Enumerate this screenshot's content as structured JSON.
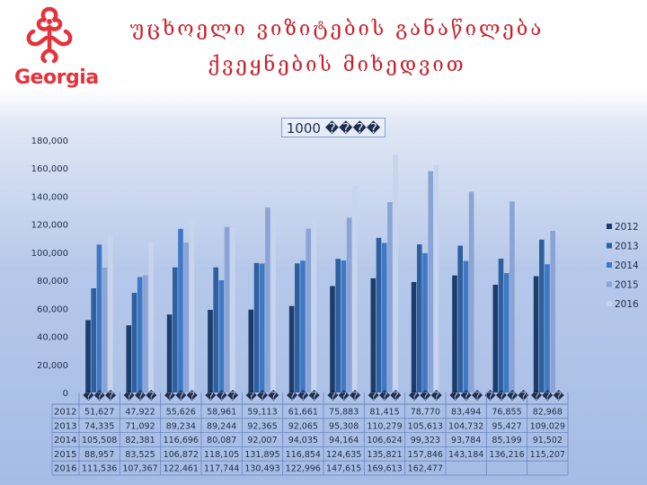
{
  "header": {
    "logo_text": "Georgia",
    "title_line1": "უცხოელი ვიზიტების განაწილება",
    "title_line2": "ქვეყნების მიხედვით"
  },
  "unit_label": "1000 ����",
  "colors": {
    "2012": "#1c3c6b",
    "2013": "#2e5f9e",
    "2014": "#3f78c4",
    "2015": "#8aa4d6",
    "2016": "#c7d4ee"
  },
  "chart_data": {
    "type": "bar",
    "ylim": [
      0,
      180000
    ],
    "y_ticks": [
      "0",
      "20,000",
      "40,000",
      "60,000",
      "80,000",
      "100,000",
      "120,000",
      "140,000",
      "160,000",
      "180,000"
    ],
    "categories": [
      "���",
      "���",
      "���",
      "���",
      "���",
      "���",
      "���",
      "���",
      "���",
      "���",
      "����",
      "���"
    ],
    "legend_position": "right",
    "series": [
      {
        "name": "2012",
        "values": [
          51627,
          47922,
          55626,
          58961,
          59113,
          61661,
          75883,
          81415,
          78770,
          83494,
          76855,
          82968
        ],
        "labels": [
          "51,627",
          "47,922",
          "55,626",
          "58,961",
          "59,113",
          "61,661",
          "75,883",
          "81,415",
          "78,770",
          "83,494",
          "76,855",
          "82,968"
        ]
      },
      {
        "name": "2013",
        "values": [
          74335,
          71092,
          89234,
          89244,
          92365,
          92065,
          95308,
          110279,
          105613,
          104732,
          95427,
          109029
        ],
        "labels": [
          "74,335",
          "71,092",
          "89,234",
          "89,244",
          "92,365",
          "92,065",
          "95,308",
          "110,279",
          "105,613",
          "104,732",
          "95,427",
          "109,029"
        ]
      },
      {
        "name": "2014",
        "values": [
          105508,
          82381,
          116696,
          80087,
          92007,
          94035,
          94164,
          106624,
          99323,
          93784,
          85199,
          91502
        ],
        "labels": [
          "105,508",
          "82,381",
          "116,696",
          "80,087",
          "92,007",
          "94,035",
          "94,164",
          "106,624",
          "99,323",
          "93,784",
          "85,199",
          "91,502"
        ]
      },
      {
        "name": "2015",
        "values": [
          88957,
          83525,
          106872,
          118105,
          131895,
          116854,
          124635,
          135821,
          157846,
          143184,
          136216,
          115207
        ],
        "labels": [
          "88,957",
          "83,525",
          "106,872",
          "118,105",
          "131,895",
          "116,854",
          "124,635",
          "135,821",
          "157,846",
          "143,184",
          "136,216",
          "115,207"
        ]
      },
      {
        "name": "2016",
        "values": [
          111536,
          107367,
          122461,
          117744,
          130493,
          122996,
          147615,
          169613,
          162477,
          null,
          null,
          null
        ],
        "labels": [
          "111,536",
          "107,367",
          "122,461",
          "117,744",
          "130,493",
          "122,996",
          "147,615",
          "169,613",
          "162,477",
          "",
          "",
          ""
        ]
      }
    ]
  }
}
